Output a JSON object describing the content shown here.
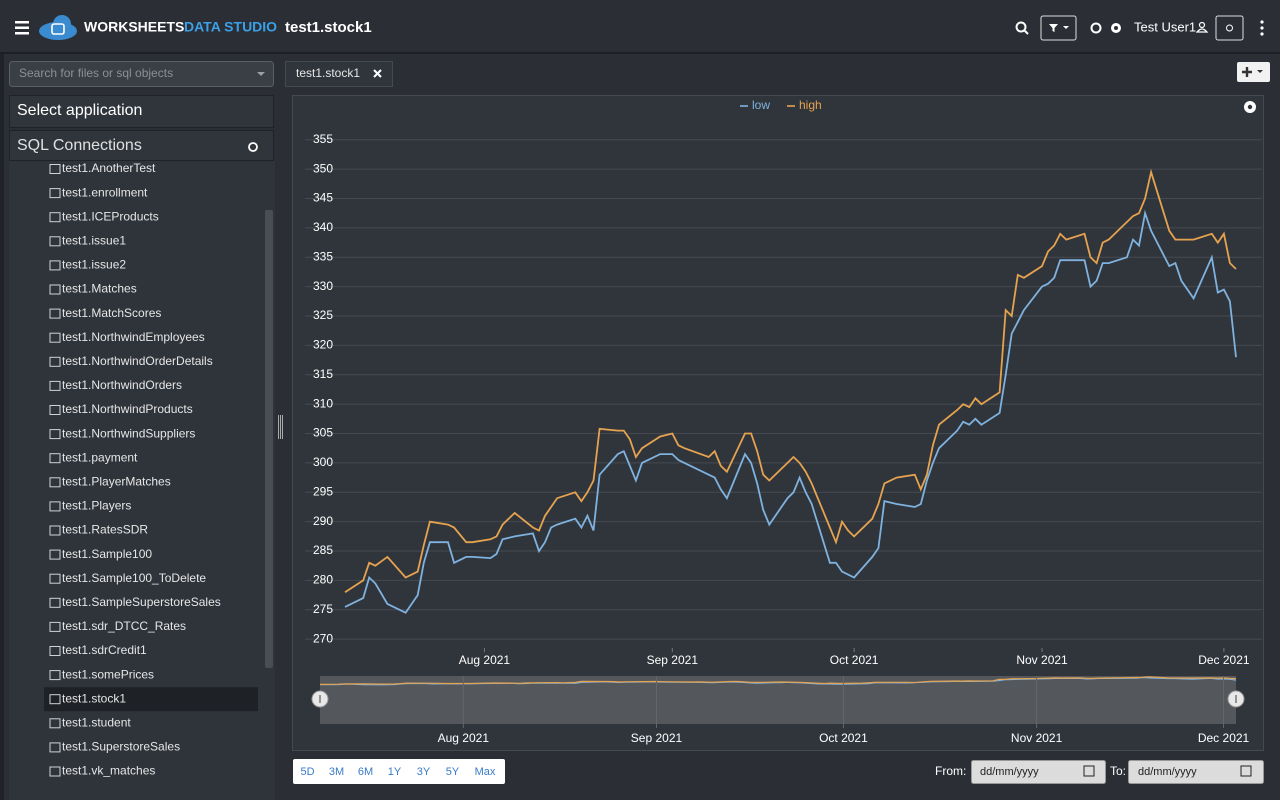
{
  "header": {
    "brand": "WORKSHEETS",
    "brand_accent": "DATA STUDIO",
    "document": "test1.stock1",
    "user": "Test User1"
  },
  "sidebar": {
    "search_placeholder": "Search for files or sql objects",
    "application_select": "Select application",
    "section_title": "SQL Connections",
    "items": [
      "test1.AnotherTest",
      "test1.enrollment",
      "test1.ICEProducts",
      "test1.issue1",
      "test1.issue2",
      "test1.Matches",
      "test1.MatchScores",
      "test1.NorthwindEmployees",
      "test1.NorthwindOrderDetails",
      "test1.NorthwindOrders",
      "test1.NorthwindProducts",
      "test1.NorthwindSuppliers",
      "test1.payment",
      "test1.PlayerMatches",
      "test1.Players",
      "test1.RatesSDR",
      "test1.Sample100",
      "test1.Sample100_ToDelete",
      "test1.SampleSuperstoreSales",
      "test1.sdr_DTCC_Rates",
      "test1.sdrCredit1",
      "test1.somePrices",
      "test1.stock1",
      "test1.student",
      "test1.SuperstoreSales",
      "test1.vk_matches"
    ],
    "selected_index": 22
  },
  "tabs": [
    "test1.stock1"
  ],
  "chart_data": {
    "type": "line",
    "x": [
      "2021-07-09",
      "2021-07-12",
      "2021-07-13",
      "2021-07-14",
      "2021-07-16",
      "2021-07-19",
      "2021-07-21",
      "2021-07-22",
      "2021-07-23",
      "2021-07-26",
      "2021-07-27",
      "2021-07-29",
      "2021-07-30",
      "2021-08-02",
      "2021-08-03",
      "2021-08-04",
      "2021-08-06",
      "2021-08-09",
      "2021-08-10",
      "2021-08-11",
      "2021-08-12",
      "2021-08-13",
      "2021-08-16",
      "2021-08-17",
      "2021-08-18",
      "2021-08-19",
      "2021-08-20",
      "2021-08-23",
      "2021-08-24",
      "2021-08-25",
      "2021-08-26",
      "2021-08-27",
      "2021-08-30",
      "2021-09-01",
      "2021-09-02",
      "2021-09-03",
      "2021-09-07",
      "2021-09-08",
      "2021-09-09",
      "2021-09-10",
      "2021-09-13",
      "2021-09-14",
      "2021-09-15",
      "2021-09-16",
      "2021-09-17",
      "2021-09-20",
      "2021-09-21",
      "2021-09-22",
      "2021-09-23",
      "2021-09-24",
      "2021-09-27",
      "2021-09-28",
      "2021-09-29",
      "2021-09-30",
      "2021-10-01",
      "2021-10-04",
      "2021-10-05",
      "2021-10-06",
      "2021-10-08",
      "2021-10-11",
      "2021-10-12",
      "2021-10-13",
      "2021-10-14",
      "2021-10-15",
      "2021-10-18",
      "2021-10-19",
      "2021-10-20",
      "2021-10-21",
      "2021-10-22",
      "2021-10-25",
      "2021-10-26",
      "2021-10-27",
      "2021-10-28",
      "2021-10-29",
      "2021-11-01",
      "2021-11-02",
      "2021-11-03",
      "2021-11-04",
      "2021-11-05",
      "2021-11-08",
      "2021-11-09",
      "2021-11-10",
      "2021-11-11",
      "2021-11-12",
      "2021-11-15",
      "2021-11-16",
      "2021-11-17",
      "2021-11-18",
      "2021-11-19",
      "2021-11-22",
      "2021-11-23",
      "2021-11-24",
      "2021-11-26",
      "2021-11-29",
      "2021-11-30",
      "2021-12-01",
      "2021-12-02",
      "2021-12-03"
    ],
    "series": [
      {
        "name": "low",
        "color": "#7fb2de",
        "values": [
          275.5,
          277,
          280.5,
          279.5,
          276,
          274.5,
          277.5,
          283,
          286.5,
          286.5,
          283,
          284,
          284,
          283.8,
          284.5,
          287,
          287.5,
          288,
          285,
          286.5,
          289,
          289.5,
          290.5,
          289,
          291,
          288.5,
          298,
          301.5,
          302,
          299.5,
          297,
          300,
          301.5,
          301.5,
          300.5,
          300,
          298,
          297.5,
          295.5,
          294,
          301.5,
          300,
          296.5,
          292,
          289.5,
          294,
          295,
          297.5,
          295,
          293,
          283,
          283,
          281.5,
          281,
          280.5,
          284,
          285.5,
          293.5,
          293,
          292.5,
          293,
          297,
          300,
          302.5,
          305.5,
          307,
          306.5,
          307.5,
          306.5,
          308.5,
          315,
          322,
          324,
          326,
          330,
          330.5,
          331.5,
          334.5,
          334.5,
          334.5,
          330,
          331,
          334,
          334,
          335,
          338,
          337,
          342.5,
          339.5,
          333.5,
          334,
          331,
          328,
          335,
          329,
          329.5,
          327.5,
          318
        ]
      },
      {
        "name": "high",
        "color": "#e6a34f",
        "values": [
          278,
          280,
          283,
          282.5,
          284,
          280.5,
          281.5,
          286,
          290,
          289.5,
          289,
          286.5,
          286.5,
          287,
          287.5,
          289.5,
          291.5,
          289,
          288.5,
          291,
          292.5,
          294,
          295,
          293.5,
          295,
          297,
          305.8,
          305.5,
          305.5,
          304,
          301,
          302.5,
          304.5,
          305,
          303,
          302.5,
          301,
          302,
          299.5,
          298.5,
          305,
          305,
          302,
          298,
          297,
          300,
          301,
          300,
          298.5,
          296.5,
          289,
          286.5,
          290,
          288.5,
          287.5,
          290.5,
          293,
          296.5,
          297.5,
          298,
          295.5,
          298,
          303,
          306.5,
          309,
          310,
          309.5,
          311,
          310,
          312,
          326,
          325,
          332,
          331.5,
          333.5,
          336,
          337,
          339,
          338,
          339,
          335,
          334,
          337.5,
          338,
          341,
          342,
          342.5,
          345,
          349.5,
          339.5,
          338,
          338,
          338,
          339,
          337.5,
          339,
          334,
          333
        ]
      }
    ],
    "xlim": [
      "2021-07-09",
      "2021-12-03"
    ],
    "xticks": [
      {
        "value": "2021-08-01",
        "label": "Aug 2021"
      },
      {
        "value": "2021-09-01",
        "label": "Sep 2021"
      },
      {
        "value": "2021-10-01",
        "label": "Oct 2021"
      },
      {
        "value": "2021-11-01",
        "label": "Nov 2021"
      },
      {
        "value": "2021-12-01",
        "label": "Dec 2021"
      }
    ],
    "ylim": [
      268.5,
      357
    ],
    "yticks": [
      270,
      275,
      280,
      285,
      290,
      295,
      300,
      305,
      310,
      315,
      320,
      325,
      330,
      335,
      340,
      345,
      350,
      355
    ],
    "grid": true,
    "legend": "top"
  },
  "range_selector": {
    "buttons": [
      "5D",
      "3M",
      "6M",
      "1Y",
      "3Y",
      "5Y",
      "Max"
    ],
    "from_label": "From:",
    "to_label": "To:",
    "date_placeholder": "dd/mm/yyyy"
  }
}
